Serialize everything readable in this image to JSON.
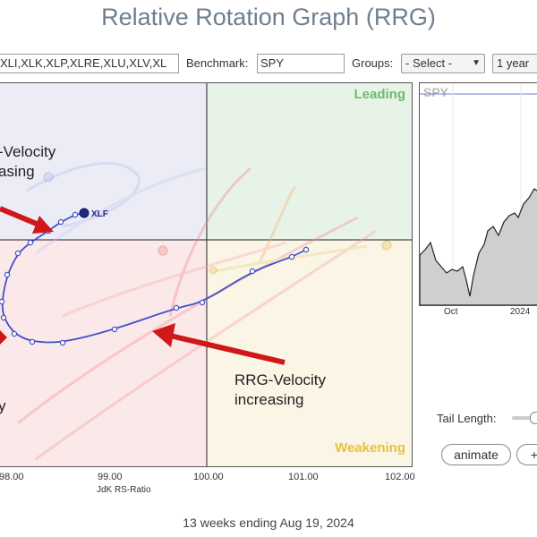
{
  "page_title": "Relative Rotation Graph (RRG)",
  "toolbar": {
    "symbols_value": "XLI,XLK,XLP,XLRE,XLU,XLV,XL",
    "benchmark_label": "Benchmark:",
    "benchmark_value": "SPY",
    "groups_label": "Groups:",
    "groups_value": "- Select -",
    "period_value": "1 year"
  },
  "quadrants": {
    "leading": "Leading",
    "weakening": "Weakening",
    "colors": {
      "improving": "#ececf6",
      "leading": "#e8f3e8",
      "weakening": "#fbf5e6",
      "lagging": "#fbe8e8"
    }
  },
  "xaxis": {
    "ticks": [
      "98.00",
      "99.00",
      "100.00",
      "101.00",
      "102.00"
    ],
    "label": "JdK RS-Ratio"
  },
  "highlight": {
    "symbol": "XLF",
    "color": "#3f51c9"
  },
  "annotations": {
    "top_left": "-Velocity\nasing",
    "bottom_right": "RRG-Velocity\nincreasing",
    "bottom_left": "y"
  },
  "spy_panel": {
    "symbol": "SPY",
    "x_ticks": [
      "Oct",
      "2024"
    ]
  },
  "controls": {
    "tail_length_label": "Tail Length:",
    "animate_label": "animate",
    "extra_label": "+"
  },
  "footer": "13 weeks ending Aug 19, 2024"
}
